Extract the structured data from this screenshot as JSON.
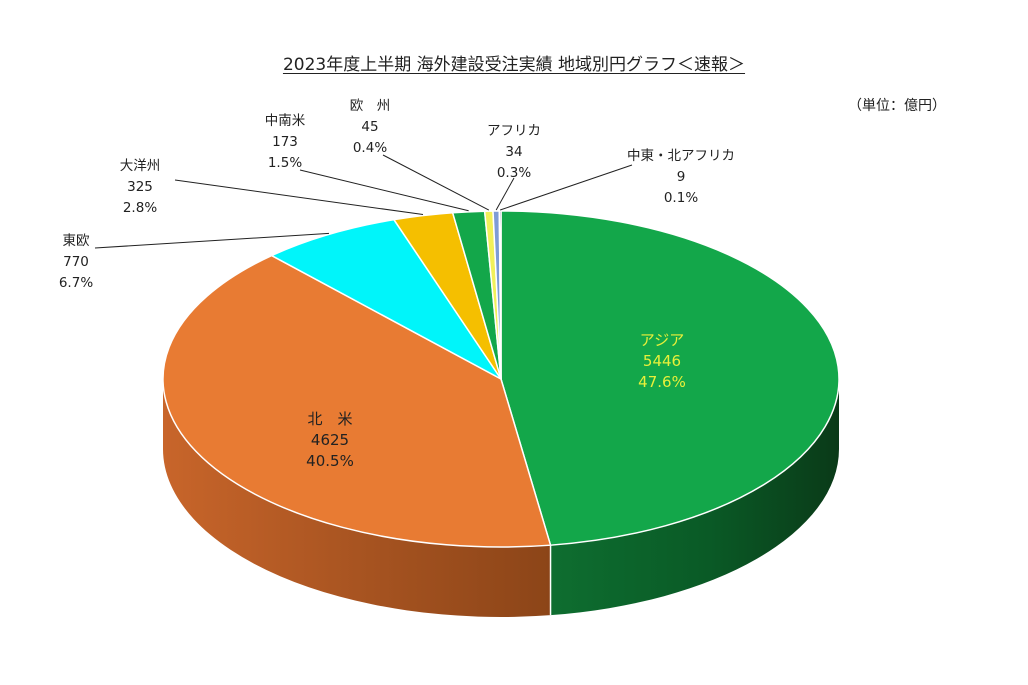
{
  "title": "2023年度上半期 海外建設受注実績 地域別円グラフ＜速報＞",
  "unit_label": "（単位：億円）",
  "chart_data": {
    "type": "pie",
    "title": "2023年度上半期 海外建設受注実績 地域別円グラフ＜速報＞",
    "unit": "億円",
    "style": "3d-tilted",
    "slices": [
      {
        "label": "アジア",
        "label_display": "アジア",
        "value": 5446,
        "percent": "47.6%",
        "color": "#13A74A",
        "label_color": "#E8F03A",
        "inside": true
      },
      {
        "label": "北米",
        "label_display": "北　米",
        "value": 4625,
        "percent": "40.5%",
        "color": "#E87B33",
        "label_color": "#222222",
        "inside": true
      },
      {
        "label": "東欧",
        "label_display": "東欧",
        "value": 770,
        "percent": "6.7%",
        "color": "#00F5FA",
        "label_color": "#222222",
        "inside": false
      },
      {
        "label": "大洋州",
        "label_display": "大洋州",
        "value": 325,
        "percent": "2.8%",
        "color": "#F5BF00",
        "label_color": "#222222",
        "inside": false
      },
      {
        "label": "中南米",
        "label_display": "中南米",
        "value": 173,
        "percent": "1.5%",
        "color": "#13A74A",
        "label_color": "#222222",
        "inside": false
      },
      {
        "label": "欧州",
        "label_display": "欧　州",
        "value": 45,
        "percent": "0.4%",
        "color": "#F2F05A",
        "label_color": "#222222",
        "inside": false
      },
      {
        "label": "アフリカ",
        "label_display": "アフリカ",
        "value": 34,
        "percent": "0.3%",
        "color": "#7E9CD6",
        "label_color": "#222222",
        "inside": false
      },
      {
        "label": "中東・北アフリカ",
        "label_display": "中東・北アフリカ",
        "value": 9,
        "percent": "0.1%",
        "color": "#1A1A60",
        "label_color": "#222222",
        "inside": false
      }
    ]
  }
}
